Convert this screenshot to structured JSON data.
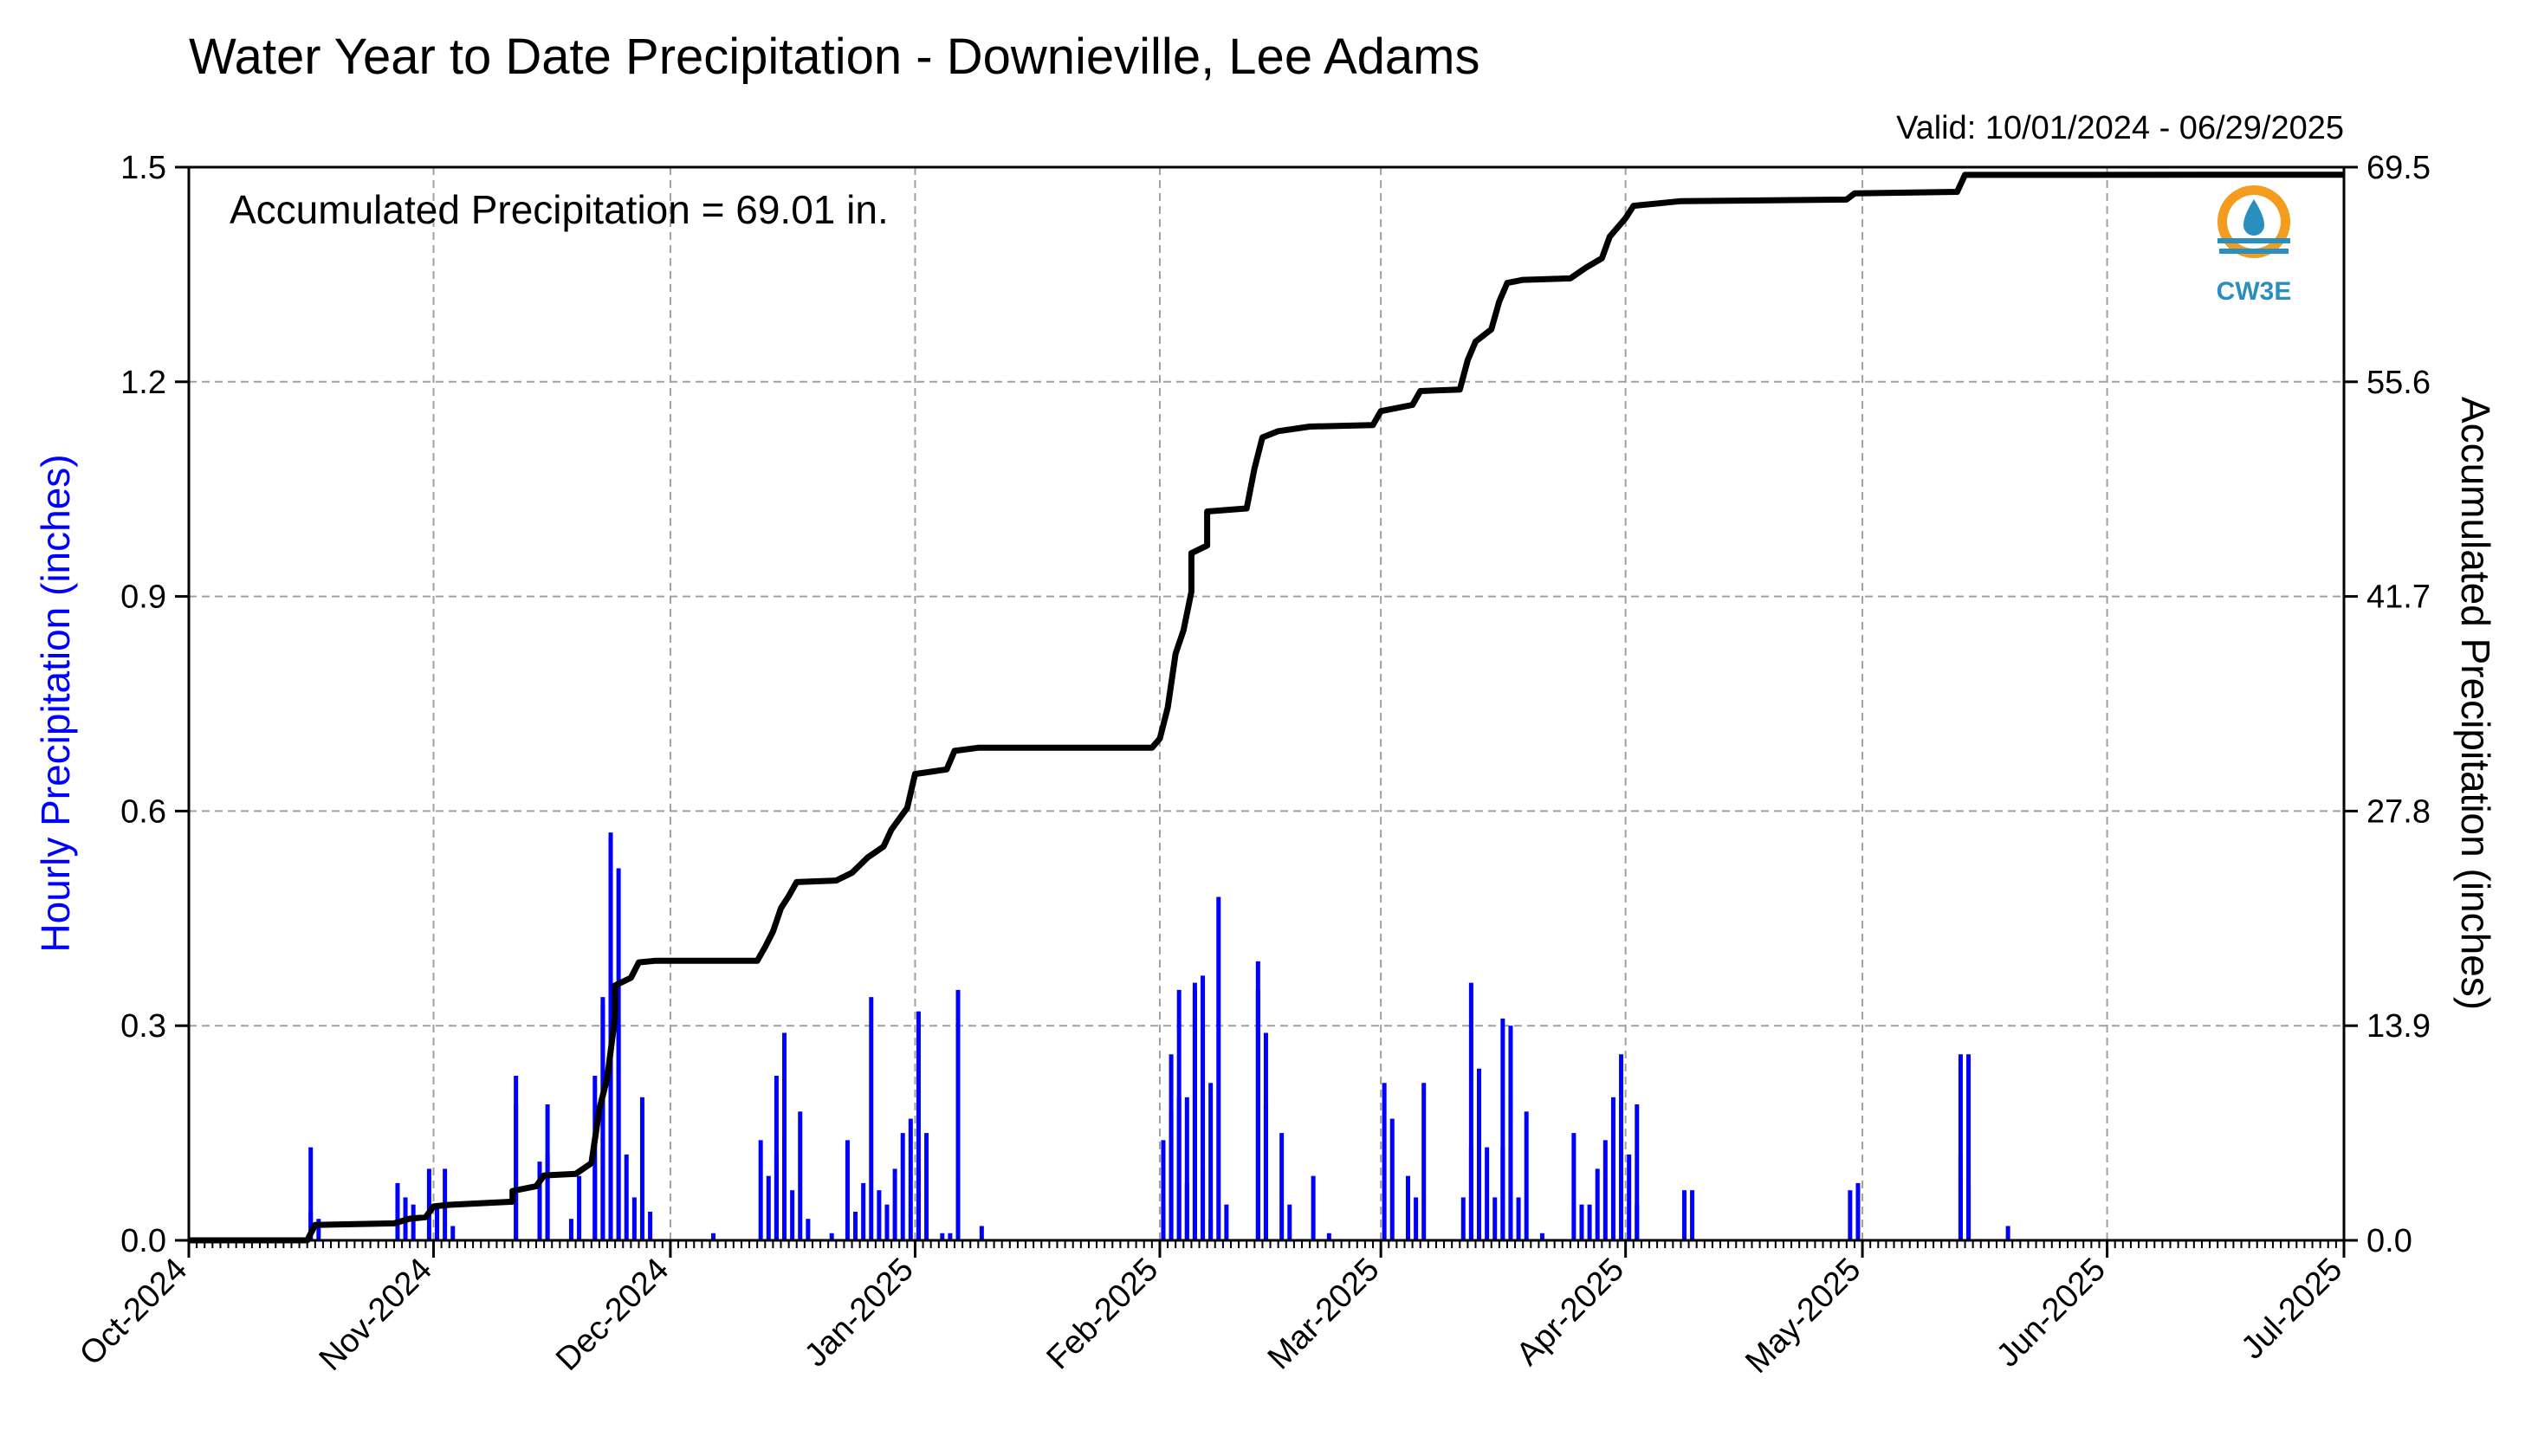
{
  "title": "Water Year to Date Precipitation - Downieville, Lee Adams",
  "valid_text": "Valid: 10/01/2024 - 06/29/2025",
  "annotation": "Accumulated Precipitation = 69.01 in.",
  "logo_text": "CW3E",
  "colors": {
    "hourly": "#0000ff",
    "accumulated": "#000000",
    "grid": "#a0a0a0",
    "logo_ring": "#f39c1e",
    "logo_blue": "#2a8fbf"
  },
  "chart_data": {
    "type": "bar+line",
    "x_range": [
      "2024-10-01",
      "2025-07-01"
    ],
    "x_ticks": [
      "Oct-2024",
      "Nov-2024",
      "Dec-2024",
      "Jan-2025",
      "Feb-2025",
      "Mar-2025",
      "Apr-2025",
      "May-2025",
      "Jun-2025",
      "Jul-2025"
    ],
    "ylabel_left": "Hourly Precipitation (inches)",
    "ylabel_right": "Accumulated Precipitation (inches)",
    "ylim_left": [
      0,
      1.5
    ],
    "ylim_right": [
      0,
      69.5
    ],
    "yticks_left": [
      "0.0",
      "0.3",
      "0.6",
      "0.9",
      "1.2",
      "1.5"
    ],
    "yticks_right": [
      "0.0",
      "13.9",
      "27.8",
      "41.7",
      "55.6",
      "69.5"
    ],
    "grid": true,
    "series": [
      {
        "name": "Hourly Precipitation",
        "kind": "bar",
        "points": [
          [
            "2024-10-16",
            0.13
          ],
          [
            "2024-10-16",
            0.04
          ],
          [
            "2024-10-17",
            0.03
          ],
          [
            "2024-10-27",
            0.08
          ],
          [
            "2024-10-28",
            0.06
          ],
          [
            "2024-10-29",
            0.05
          ],
          [
            "2024-10-31",
            0.1
          ],
          [
            "2024-11-01",
            0.05
          ],
          [
            "2024-11-02",
            0.1
          ],
          [
            "2024-11-03",
            0.02
          ],
          [
            "2024-11-11",
            0.19
          ],
          [
            "2024-11-11",
            0.23
          ],
          [
            "2024-11-14",
            0.11
          ],
          [
            "2024-11-15",
            0.12
          ],
          [
            "2024-11-15",
            0.19
          ],
          [
            "2024-11-18",
            0.03
          ],
          [
            "2024-11-19",
            0.09
          ],
          [
            "2024-11-21",
            0.1
          ],
          [
            "2024-11-21",
            0.23
          ],
          [
            "2024-11-22",
            0.34
          ],
          [
            "2024-11-22",
            0.33
          ],
          [
            "2024-11-23",
            0.35
          ],
          [
            "2024-11-23",
            0.57
          ],
          [
            "2024-11-24",
            0.52
          ],
          [
            "2024-11-24",
            0.3
          ],
          [
            "2024-11-25",
            0.12
          ],
          [
            "2024-11-26",
            0.06
          ],
          [
            "2024-11-27",
            0.2
          ],
          [
            "2024-11-28",
            0.04
          ],
          [
            "2024-12-06",
            0.01
          ],
          [
            "2024-12-12",
            0.14
          ],
          [
            "2024-12-13",
            0.09
          ],
          [
            "2024-12-14",
            0.12
          ],
          [
            "2024-12-14",
            0.23
          ],
          [
            "2024-12-15",
            0.29
          ],
          [
            "2024-12-15",
            0.14
          ],
          [
            "2024-12-16",
            0.07
          ],
          [
            "2024-12-17",
            0.18
          ],
          [
            "2024-12-18",
            0.03
          ],
          [
            "2024-12-21",
            0.01
          ],
          [
            "2024-12-23",
            0.14
          ],
          [
            "2024-12-24",
            0.04
          ],
          [
            "2024-12-25",
            0.08
          ],
          [
            "2024-12-26",
            0.34
          ],
          [
            "2024-12-27",
            0.07
          ],
          [
            "2024-12-28",
            0.05
          ],
          [
            "2024-12-29",
            0.1
          ],
          [
            "2024-12-30",
            0.15
          ],
          [
            "2024-12-31",
            0.17
          ],
          [
            "2025-01-01",
            0.1
          ],
          [
            "2025-01-01",
            0.32
          ],
          [
            "2025-01-02",
            0.15
          ],
          [
            "2025-01-04",
            0.01
          ],
          [
            "2025-01-05",
            0.01
          ],
          [
            "2025-01-06",
            0.35
          ],
          [
            "2025-01-06",
            0.09
          ],
          [
            "2025-01-09",
            0.02
          ],
          [
            "2025-02-01",
            0.05
          ],
          [
            "2025-02-01",
            0.14
          ],
          [
            "2025-02-02",
            0.18
          ],
          [
            "2025-02-02",
            0.26
          ],
          [
            "2025-02-03",
            0.35
          ],
          [
            "2025-02-03",
            0.2
          ],
          [
            "2025-02-04",
            0.08
          ],
          [
            "2025-02-04",
            0.2
          ],
          [
            "2025-02-05",
            0.35
          ],
          [
            "2025-02-05",
            0.36
          ],
          [
            "2025-02-06",
            0.37
          ],
          [
            "2025-02-06",
            0.1
          ],
          [
            "2025-02-07",
            0.03
          ],
          [
            "2025-02-07",
            0.22
          ],
          [
            "2025-02-08",
            0.48
          ],
          [
            "2025-02-09",
            0.05
          ],
          [
            "2025-02-13",
            0.39
          ],
          [
            "2025-02-13",
            0.35
          ],
          [
            "2025-02-14",
            0.29
          ],
          [
            "2025-02-14",
            0.19
          ],
          [
            "2025-02-16",
            0.15
          ],
          [
            "2025-02-17",
            0.05
          ],
          [
            "2025-02-20",
            0.09
          ],
          [
            "2025-02-22",
            0.01
          ],
          [
            "2025-03-01",
            0.22
          ],
          [
            "2025-03-02",
            0.17
          ],
          [
            "2025-03-04",
            0.09
          ],
          [
            "2025-03-05",
            0.06
          ],
          [
            "2025-03-06",
            0.22
          ],
          [
            "2025-03-11",
            0.06
          ],
          [
            "2025-03-12",
            0.13
          ],
          [
            "2025-03-12",
            0.36
          ],
          [
            "2025-03-13",
            0.24
          ],
          [
            "2025-03-13",
            0.12
          ],
          [
            "2025-03-14",
            0.13
          ],
          [
            "2025-03-15",
            0.06
          ],
          [
            "2025-03-16",
            0.13
          ],
          [
            "2025-03-16",
            0.31
          ],
          [
            "2025-03-17",
            0.3
          ],
          [
            "2025-03-17",
            0.2
          ],
          [
            "2025-03-18",
            0.06
          ],
          [
            "2025-03-19",
            0.18
          ],
          [
            "2025-03-21",
            0.01
          ],
          [
            "2025-03-25",
            0.15
          ],
          [
            "2025-03-26",
            0.05
          ],
          [
            "2025-03-27",
            0.05
          ],
          [
            "2025-03-28",
            0.1
          ],
          [
            "2025-03-29",
            0.14
          ],
          [
            "2025-03-30",
            0.2
          ],
          [
            "2025-03-31",
            0.26
          ],
          [
            "2025-04-01",
            0.12
          ],
          [
            "2025-04-02",
            0.05
          ],
          [
            "2025-04-02",
            0.19
          ],
          [
            "2025-04-08",
            0.07
          ],
          [
            "2025-04-09",
            0.07
          ],
          [
            "2025-04-29",
            0.07
          ],
          [
            "2025-04-30",
            0.08
          ],
          [
            "2025-05-13",
            0.12
          ],
          [
            "2025-05-13",
            0.26
          ],
          [
            "2025-05-14",
            0.26
          ],
          [
            "2025-05-14",
            0.08
          ],
          [
            "2025-05-19",
            0.02
          ]
        ]
      },
      {
        "name": "Accumulated Precipitation",
        "kind": "line",
        "points": [
          [
            "2024-10-01",
            0.0
          ],
          [
            "2024-10-16",
            0.0
          ],
          [
            "2024-10-17",
            1.0
          ],
          [
            "2024-10-27",
            1.1
          ],
          [
            "2024-10-29",
            1.4
          ],
          [
            "2024-10-31",
            1.5
          ],
          [
            "2024-11-01",
            2.2
          ],
          [
            "2024-11-03",
            2.3
          ],
          [
            "2024-11-11",
            2.5
          ],
          [
            "2024-11-11",
            3.2
          ],
          [
            "2024-11-14",
            3.5
          ],
          [
            "2024-11-15",
            4.2
          ],
          [
            "2024-11-19",
            4.3
          ],
          [
            "2024-11-21",
            5.0
          ],
          [
            "2024-11-22",
            8.5
          ],
          [
            "2024-11-23",
            10.5
          ],
          [
            "2024-11-24",
            14.5
          ],
          [
            "2024-11-24",
            16.5
          ],
          [
            "2024-11-26",
            17.0
          ],
          [
            "2024-11-27",
            18.0
          ],
          [
            "2024-11-29",
            18.1
          ],
          [
            "2024-12-12",
            18.1
          ],
          [
            "2024-12-13",
            19.0
          ],
          [
            "2024-12-14",
            20.0
          ],
          [
            "2024-12-15",
            21.5
          ],
          [
            "2024-12-16",
            22.3
          ],
          [
            "2024-12-17",
            23.2
          ],
          [
            "2024-12-22",
            23.3
          ],
          [
            "2024-12-24",
            23.8
          ],
          [
            "2024-12-26",
            24.8
          ],
          [
            "2024-12-28",
            25.5
          ],
          [
            "2024-12-29",
            26.6
          ],
          [
            "2024-12-31",
            28.0
          ],
          [
            "2025-01-01",
            30.2
          ],
          [
            "2025-01-05",
            30.5
          ],
          [
            "2025-01-06",
            31.7
          ],
          [
            "2025-01-09",
            31.9
          ],
          [
            "2025-01-31",
            31.9
          ],
          [
            "2025-02-01",
            32.5
          ],
          [
            "2025-02-02",
            34.5
          ],
          [
            "2025-02-03",
            38.0
          ],
          [
            "2025-02-04",
            39.5
          ],
          [
            "2025-02-05",
            42.0
          ],
          [
            "2025-02-05",
            44.5
          ],
          [
            "2025-02-07",
            45.0
          ],
          [
            "2025-02-07",
            47.2
          ],
          [
            "2025-02-12",
            47.4
          ],
          [
            "2025-02-13",
            50.0
          ],
          [
            "2025-02-14",
            52.0
          ],
          [
            "2025-02-16",
            52.4
          ],
          [
            "2025-02-20",
            52.7
          ],
          [
            "2025-02-28",
            52.8
          ],
          [
            "2025-03-01",
            53.7
          ],
          [
            "2025-03-05",
            54.1
          ],
          [
            "2025-03-06",
            55.0
          ],
          [
            "2025-03-11",
            55.1
          ],
          [
            "2025-03-12",
            57.0
          ],
          [
            "2025-03-13",
            58.2
          ],
          [
            "2025-03-15",
            59.0
          ],
          [
            "2025-03-16",
            60.8
          ],
          [
            "2025-03-17",
            62.0
          ],
          [
            "2025-03-19",
            62.2
          ],
          [
            "2025-03-25",
            62.3
          ],
          [
            "2025-03-27",
            63.0
          ],
          [
            "2025-03-29",
            63.6
          ],
          [
            "2025-03-30",
            65.0
          ],
          [
            "2025-04-01",
            66.2
          ],
          [
            "2025-04-02",
            67.0
          ],
          [
            "2025-04-08",
            67.3
          ],
          [
            "2025-04-29",
            67.4
          ],
          [
            "2025-04-30",
            67.8
          ],
          [
            "2025-05-13",
            67.9
          ],
          [
            "2025-05-14",
            69.0
          ],
          [
            "2025-07-01",
            69.01
          ]
        ]
      }
    ]
  }
}
